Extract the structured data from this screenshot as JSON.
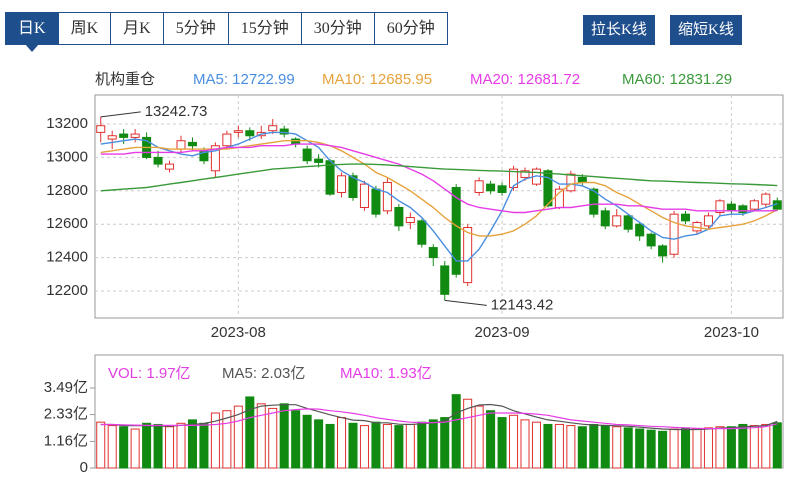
{
  "tabs": [
    "日K",
    "周K",
    "月K",
    "5分钟",
    "15分钟",
    "30分钟",
    "60分钟"
  ],
  "selected_tab": 0,
  "buttons": [
    "拉长K线",
    "缩短K线"
  ],
  "chart_data": [
    {
      "type": "candlestick",
      "label": "机构重仓",
      "categories": [
        null,
        null,
        null,
        null,
        null,
        null,
        null,
        null,
        null,
        null,
        null,
        null,
        "2023-08",
        null,
        null,
        null,
        null,
        null,
        null,
        null,
        null,
        null,
        null,
        null,
        null,
        null,
        null,
        null,
        null,
        null,
        null,
        null,
        null,
        null,
        null,
        "2023-09",
        null,
        null,
        null,
        null,
        null,
        null,
        null,
        null,
        null,
        null,
        null,
        null,
        null,
        null,
        null,
        null,
        null,
        null,
        null,
        "2023-10",
        null,
        null,
        null,
        null
      ],
      "open": [
        13150,
        13110,
        13140,
        13120,
        13120,
        13000,
        12930,
        13050,
        13090,
        13040,
        12920,
        13070,
        13150,
        13160,
        13130,
        13160,
        13170,
        13110,
        13050,
        12990,
        12980,
        12790,
        12890,
        12700,
        12810,
        12680,
        12700,
        12610,
        12620,
        12460,
        12350,
        12820,
        12250,
        12790,
        12840,
        12830,
        12820,
        12880,
        12840,
        12920,
        12700,
        12800,
        12880,
        12810,
        12680,
        12590,
        12650,
        12600,
        12540,
        12470,
        12420,
        12660,
        12560,
        12590,
        12670,
        12720,
        12710,
        12690,
        12720,
        12740
      ],
      "close": [
        13190,
        13130,
        13120,
        13140,
        13000,
        12960,
        12960,
        13100,
        13070,
        12980,
        13070,
        13140,
        13160,
        13130,
        13150,
        13190,
        13140,
        13080,
        12980,
        12970,
        12780,
        12890,
        12760,
        12840,
        12660,
        12850,
        12590,
        12640,
        12480,
        12400,
        12180,
        12300,
        12580,
        12860,
        12800,
        12790,
        12930,
        12920,
        12930,
        12710,
        12810,
        12900,
        12850,
        12660,
        12590,
        12650,
        12570,
        12530,
        12470,
        12410,
        12660,
        12620,
        12610,
        12650,
        12740,
        12680,
        12670,
        12740,
        12780,
        12690
      ],
      "high": [
        13242.73,
        13160,
        13170,
        13170,
        13150,
        13040,
        12980,
        13130,
        13120,
        13060,
        13090,
        13160,
        13190,
        13180,
        13190,
        13230,
        13190,
        13120,
        13070,
        13020,
        12990,
        12910,
        12910,
        12860,
        12830,
        12880,
        12720,
        12670,
        12630,
        12480,
        12380,
        12840,
        12600,
        12880,
        12860,
        12850,
        12950,
        12940,
        12940,
        12930,
        12830,
        12920,
        12900,
        12820,
        12700,
        12690,
        12660,
        12610,
        12550,
        12480,
        12680,
        12680,
        12620,
        12670,
        12750,
        12740,
        12720,
        12750,
        12790,
        12760
      ],
      "low": [
        13090,
        13050,
        13080,
        13090,
        12990,
        12940,
        12910,
        13030,
        13040,
        12960,
        12880,
        13050,
        13120,
        13100,
        13110,
        13140,
        13120,
        13060,
        12960,
        12940,
        12770,
        12760,
        12740,
        12680,
        12640,
        12660,
        12560,
        12570,
        12460,
        12350,
        12143.42,
        12280,
        12230,
        12770,
        12780,
        12770,
        12800,
        12860,
        12830,
        12700,
        12690,
        12790,
        12830,
        12640,
        12570,
        12580,
        12550,
        12500,
        12450,
        12370,
        12400,
        12600,
        12540,
        12570,
        12650,
        12660,
        12650,
        12680,
        12700,
        12680
      ],
      "up_color": "#e0312f",
      "down_color": "#118a11",
      "series": [
        {
          "name": "MA5: 12722.99",
          "color": "#4a8ee0",
          "values": [
            13080,
            13090,
            13100,
            13110,
            13100,
            13060,
            13040,
            13020,
            13010,
            13030,
            13040,
            13060,
            13080,
            13110,
            13140,
            13150,
            13150,
            13140,
            13100,
            13060,
            12980,
            12920,
            12880,
            12850,
            12810,
            12790,
            12740,
            12700,
            12640,
            12560,
            12470,
            12380,
            12380,
            12450,
            12560,
            12680,
            12830,
            12870,
            12890,
            12880,
            12840,
            12840,
            12830,
            12800,
            12750,
            12710,
            12660,
            12610,
            12560,
            12520,
            12510,
            12530,
            12540,
            12570,
            12650,
            12660,
            12660,
            12680,
            12700,
            12722.99
          ]
        },
        {
          "name": "MA10: 12685.95",
          "color": "#e6a23c",
          "values": [
            13030,
            13040,
            13050,
            13060,
            13060,
            13060,
            13050,
            13050,
            13050,
            13050,
            13050,
            13050,
            13060,
            13070,
            13080,
            13090,
            13100,
            13100,
            13100,
            13090,
            13070,
            13040,
            13000,
            12960,
            12910,
            12880,
            12840,
            12800,
            12750,
            12700,
            12640,
            12590,
            12550,
            12530,
            12530,
            12540,
            12560,
            12600,
            12650,
            12720,
            12790,
            12840,
            12850,
            12850,
            12830,
            12790,
            12760,
            12720,
            12680,
            12640,
            12610,
            12590,
            12580,
            12570,
            12580,
            12590,
            12600,
            12620,
            12650,
            12685.95
          ]
        },
        {
          "name": "MA20: 12681.72",
          "color": "#e63ce6",
          "values": [
            13020,
            13020,
            13020,
            13030,
            13030,
            13030,
            13030,
            13030,
            13040,
            13040,
            13050,
            13060,
            13060,
            13060,
            13070,
            13070,
            13070,
            13080,
            13080,
            13080,
            13070,
            13060,
            13040,
            13020,
            13000,
            12980,
            12960,
            12930,
            12900,
            12860,
            12810,
            12760,
            12720,
            12700,
            12690,
            12680,
            12670,
            12670,
            12680,
            12690,
            12700,
            12700,
            12710,
            12720,
            12720,
            12720,
            12710,
            12710,
            12700,
            12690,
            12690,
            12690,
            12680,
            12680,
            12680,
            12680,
            12680,
            12680,
            12680,
            12681.72
          ]
        },
        {
          "name": "MA60: 12831.29",
          "color": "#3a9a3a",
          "values": [
            12800,
            12805,
            12810,
            12815,
            12820,
            12830,
            12840,
            12850,
            12860,
            12870,
            12880,
            12890,
            12900,
            12910,
            12920,
            12930,
            12935,
            12940,
            12945,
            12950,
            12955,
            12958,
            12960,
            12960,
            12958,
            12955,
            12950,
            12945,
            12940,
            12935,
            12930,
            12928,
            12925,
            12922,
            12920,
            12918,
            12915,
            12912,
            12910,
            12905,
            12900,
            12895,
            12890,
            12885,
            12880,
            12875,
            12870,
            12865,
            12860,
            12858,
            12855,
            12852,
            12850,
            12848,
            12845,
            12842,
            12840,
            12838,
            12835,
            12831.29
          ]
        }
      ],
      "ylim": [
        12038,
        13374
      ],
      "yticks": [
        12200,
        12400,
        12600,
        12800,
        13000,
        13200
      ],
      "grid": true
    },
    {
      "type": "volume",
      "series": [
        {
          "name": "VOL: 1.97亿",
          "color": "#e040e0",
          "values": [
            2.0,
            1.85,
            1.8,
            1.7,
            1.95,
            1.9,
            1.8,
            1.95,
            2.1,
            1.95,
            2.4,
            2.5,
            2.7,
            3.1,
            2.8,
            2.6,
            2.8,
            2.5,
            2.3,
            2.1,
            1.9,
            2.2,
            1.95,
            1.85,
            2.0,
            1.9,
            1.85,
            1.9,
            2.0,
            2.1,
            2.2,
            3.2,
            3.0,
            2.7,
            2.5,
            2.2,
            2.3,
            2.1,
            2.0,
            1.9,
            1.9,
            1.85,
            1.8,
            1.9,
            1.85,
            1.8,
            1.75,
            1.7,
            1.65,
            1.6,
            1.7,
            1.75,
            1.7,
            1.75,
            1.8,
            1.8,
            1.9,
            1.85,
            1.9,
            1.97
          ]
        },
        {
          "name": "MA5: 2.03亿",
          "color": "#555555",
          "values": [
            1.9,
            1.9,
            1.85,
            1.85,
            1.85,
            1.83,
            1.83,
            1.86,
            1.9,
            1.94,
            2.04,
            2.18,
            2.33,
            2.55,
            2.7,
            2.74,
            2.76,
            2.76,
            2.6,
            2.46,
            2.32,
            2.2,
            2.09,
            2.07,
            1.97,
            1.97,
            1.91,
            1.9,
            1.93,
            1.97,
            2.05,
            2.4,
            2.6,
            2.75,
            2.77,
            2.7,
            2.5,
            2.36,
            2.22,
            2.1,
            2.04,
            1.97,
            1.91,
            1.87,
            1.86,
            1.84,
            1.82,
            1.78,
            1.74,
            1.7,
            1.68,
            1.68,
            1.68,
            1.7,
            1.74,
            1.76,
            1.8,
            1.82,
            1.85,
            2.03
          ]
        },
        {
          "name": "MA10: 1.93亿",
          "color": "#e63ce6",
          "values": [
            1.9,
            1.9,
            1.88,
            1.87,
            1.86,
            1.86,
            1.86,
            1.86,
            1.86,
            1.87,
            1.9,
            1.95,
            2.05,
            2.2,
            2.3,
            2.4,
            2.5,
            2.55,
            2.58,
            2.57,
            2.5,
            2.45,
            2.38,
            2.3,
            2.2,
            2.12,
            2.05,
            2.0,
            1.98,
            1.98,
            2.0,
            2.1,
            2.2,
            2.3,
            2.4,
            2.4,
            2.4,
            2.38,
            2.35,
            2.3,
            2.2,
            2.1,
            2.05,
            2.0,
            1.95,
            1.9,
            1.88,
            1.85,
            1.82,
            1.8,
            1.77,
            1.75,
            1.73,
            1.72,
            1.72,
            1.72,
            1.74,
            1.76,
            1.8,
            1.93
          ]
        }
      ],
      "ylim": [
        0,
        4.93
      ],
      "yticks": [
        0,
        {
          "value": 1.16,
          "label": "1.16亿"
        },
        {
          "value": 2.33,
          "label": "2.33亿"
        },
        {
          "value": 3.49,
          "label": "3.49亿"
        }
      ]
    }
  ]
}
